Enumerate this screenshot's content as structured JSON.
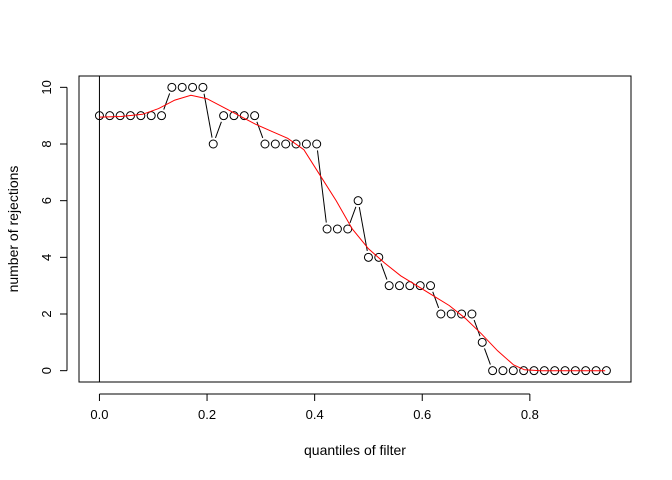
{
  "chart_data": {
    "type": "scatter",
    "title": "",
    "xlabel": "quantiles of filter",
    "ylabel": "number of rejections",
    "xlim": [
      -0.038,
      0.988
    ],
    "ylim": [
      -0.4,
      10.4
    ],
    "xticks": [
      0.0,
      0.2,
      0.4,
      0.6,
      0.8
    ],
    "xtick_labels": [
      "0.0",
      "0.2",
      "0.4",
      "0.6",
      "0.8"
    ],
    "yticks": [
      0,
      2,
      4,
      6,
      8,
      10
    ],
    "ytick_labels": [
      "0",
      "2",
      "4",
      "6",
      "8",
      "10"
    ],
    "vertical_reference_line_x": 0,
    "grid": false,
    "legend": "none",
    "series": [
      {
        "style": "points-connected",
        "color": "#000000",
        "x": [
          0.0,
          0.0192,
          0.0385,
          0.0577,
          0.0769,
          0.0962,
          0.1154,
          0.1346,
          0.1538,
          0.1731,
          0.1923,
          0.2115,
          0.2308,
          0.25,
          0.2692,
          0.2885,
          0.3077,
          0.3269,
          0.3462,
          0.3654,
          0.3846,
          0.4038,
          0.4231,
          0.4423,
          0.4615,
          0.4808,
          0.5,
          0.5192,
          0.5385,
          0.5577,
          0.5769,
          0.5962,
          0.6154,
          0.6346,
          0.6538,
          0.6731,
          0.6923,
          0.7115,
          0.7308,
          0.75,
          0.7692,
          0.7885,
          0.8077,
          0.8269,
          0.8462,
          0.8654,
          0.8846,
          0.9038,
          0.9231,
          0.9423
        ],
        "values": [
          9,
          9,
          9,
          9,
          9,
          9,
          9,
          10,
          10,
          10,
          10,
          8,
          9,
          9,
          9,
          9,
          8,
          8,
          8,
          8,
          8,
          8,
          5,
          5,
          5,
          6,
          4,
          4,
          3,
          3,
          3,
          3,
          3,
          2,
          2,
          2,
          2,
          1,
          0,
          0,
          0,
          0,
          0,
          0,
          0,
          0,
          0,
          0,
          0,
          0
        ]
      },
      {
        "style": "smooth-line",
        "color": "#ff0000",
        "x": [
          0.0,
          0.04,
          0.08,
          0.11,
          0.14,
          0.17,
          0.2,
          0.23,
          0.26,
          0.29,
          0.32,
          0.35,
          0.38,
          0.41,
          0.44,
          0.47,
          0.5,
          0.53,
          0.56,
          0.59,
          0.62,
          0.65,
          0.68,
          0.71,
          0.74,
          0.77,
          0.79,
          0.82,
          0.86,
          0.9,
          0.94
        ],
        "values": [
          8.95,
          8.97,
          9.05,
          9.25,
          9.55,
          9.72,
          9.6,
          9.3,
          9.0,
          8.7,
          8.45,
          8.2,
          7.8,
          6.9,
          6.0,
          5.0,
          4.3,
          3.8,
          3.35,
          3.0,
          2.65,
          2.3,
          1.85,
          1.3,
          0.7,
          0.2,
          0.03,
          0.0,
          0.0,
          0.0,
          0.0
        ]
      }
    ]
  }
}
